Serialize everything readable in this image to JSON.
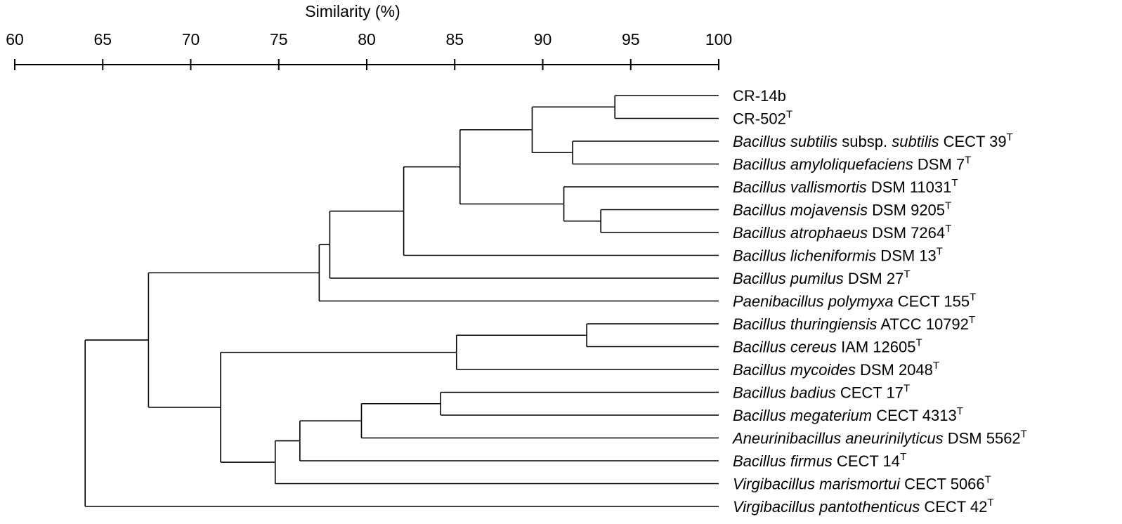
{
  "axis": {
    "title": "Similarity (%)",
    "min": 60,
    "max": 100,
    "ticks": [
      60,
      65,
      70,
      75,
      80,
      85,
      90,
      95,
      100
    ]
  },
  "leaves": [
    {
      "id": "cr14b",
      "parts": [
        {
          "t": "CR-14b",
          "i": false
        }
      ],
      "sup": ""
    },
    {
      "id": "cr502",
      "parts": [
        {
          "t": "CR-502",
          "i": false
        }
      ],
      "sup": "T"
    },
    {
      "id": "bsub",
      "parts": [
        {
          "t": "Bacillus subtilis",
          "i": true
        },
        {
          "t": " subsp. ",
          "i": false
        },
        {
          "t": "subtilis",
          "i": true
        },
        {
          "t": " CECT 39",
          "i": false
        }
      ],
      "sup": "T"
    },
    {
      "id": "bamy",
      "parts": [
        {
          "t": "Bacillus amyloliquefaciens",
          "i": true
        },
        {
          "t": " DSM 7",
          "i": false
        }
      ],
      "sup": "T"
    },
    {
      "id": "bval",
      "parts": [
        {
          "t": "Bacillus vallismortis",
          "i": true
        },
        {
          "t": " DSM 11031",
          "i": false
        }
      ],
      "sup": "T"
    },
    {
      "id": "bmoj",
      "parts": [
        {
          "t": "Bacillus mojavensis",
          "i": true
        },
        {
          "t": " DSM 9205",
          "i": false
        }
      ],
      "sup": "T"
    },
    {
      "id": "batr",
      "parts": [
        {
          "t": "Bacillus atrophaeus",
          "i": true
        },
        {
          "t": " DSM 7264",
          "i": false
        }
      ],
      "sup": "T"
    },
    {
      "id": "blic",
      "parts": [
        {
          "t": "Bacillus licheniformis",
          "i": true
        },
        {
          "t": " DSM 13",
          "i": false
        }
      ],
      "sup": "T"
    },
    {
      "id": "bpum",
      "parts": [
        {
          "t": "Bacillus pumilus",
          "i": true
        },
        {
          "t": " DSM 27",
          "i": false
        }
      ],
      "sup": "T"
    },
    {
      "id": "ppol",
      "parts": [
        {
          "t": "Paenibacillus polymyxa",
          "i": true
        },
        {
          "t": " CECT 155",
          "i": false
        }
      ],
      "sup": "T"
    },
    {
      "id": "bthu",
      "parts": [
        {
          "t": "Bacillus thuringiensis",
          "i": true
        },
        {
          "t": " ATCC 10792",
          "i": false
        }
      ],
      "sup": "T"
    },
    {
      "id": "bcer",
      "parts": [
        {
          "t": "Bacillus cereus",
          "i": true
        },
        {
          "t": " IAM 12605",
          "i": false
        }
      ],
      "sup": "T"
    },
    {
      "id": "bmyc",
      "parts": [
        {
          "t": "Bacillus mycoides",
          "i": true
        },
        {
          "t": " DSM 2048",
          "i": false
        }
      ],
      "sup": "T"
    },
    {
      "id": "bbad",
      "parts": [
        {
          "t": "Bacillus badius",
          "i": true
        },
        {
          "t": " CECT 17",
          "i": false
        }
      ],
      "sup": "T"
    },
    {
      "id": "bmeg",
      "parts": [
        {
          "t": "Bacillus megaterium",
          "i": true
        },
        {
          "t": " CECT 4313",
          "i": false
        }
      ],
      "sup": "T"
    },
    {
      "id": "aane",
      "parts": [
        {
          "t": "Aneurinibacillus aneurinilyticus",
          "i": true
        },
        {
          "t": " DSM 5562",
          "i": false
        }
      ],
      "sup": "T"
    },
    {
      "id": "bfir",
      "parts": [
        {
          "t": "Bacillus firmus",
          "i": true
        },
        {
          "t": " CECT 14",
          "i": false
        }
      ],
      "sup": "T"
    },
    {
      "id": "vmar",
      "parts": [
        {
          "t": "Virgibacillus marismortui",
          "i": true
        },
        {
          "t": " CECT 5066",
          "i": false
        }
      ],
      "sup": "T"
    },
    {
      "id": "vpan",
      "parts": [
        {
          "t": "Virgibacillus pantothenticus",
          "i": true
        },
        {
          "t": " CECT 42",
          "i": false
        }
      ],
      "sup": "T"
    }
  ],
  "tree": {
    "sim": 64.0,
    "children": [
      {
        "sim": 67.6,
        "children": [
          {
            "sim": 77.3,
            "children": [
              {
                "sim": 77.9,
                "children": [
                  {
                    "sim": 82.1,
                    "children": [
                      {
                        "sim": 85.3,
                        "children": [
                          {
                            "sim": 89.4,
                            "children": [
                              {
                                "sim": 94.1,
                                "children": [
                                  {
                                    "leaf": 0
                                  },
                                  {
                                    "leaf": 1
                                  }
                                ]
                              },
                              {
                                "sim": 91.7,
                                "children": [
                                  {
                                    "leaf": 2
                                  },
                                  {
                                    "leaf": 3
                                  }
                                ]
                              }
                            ]
                          },
                          {
                            "sim": 91.2,
                            "children": [
                              {
                                "leaf": 4
                              },
                              {
                                "sim": 93.3,
                                "children": [
                                  {
                                    "leaf": 5
                                  },
                                  {
                                    "leaf": 6
                                  }
                                ]
                              }
                            ]
                          }
                        ]
                      },
                      {
                        "leaf": 7
                      }
                    ]
                  },
                  {
                    "leaf": 8
                  }
                ]
              },
              {
                "leaf": 9
              }
            ]
          },
          {
            "sim": 71.7,
            "children": [
              {
                "sim": 85.1,
                "children": [
                  {
                    "sim": 92.5,
                    "children": [
                      {
                        "leaf": 10
                      },
                      {
                        "leaf": 11
                      }
                    ]
                  },
                  {
                    "leaf": 12
                  }
                ]
              },
              {
                "sim": 74.8,
                "children": [
                  {
                    "sim": 76.2,
                    "children": [
                      {
                        "sim": 79.7,
                        "children": [
                          {
                            "sim": 84.2,
                            "children": [
                              {
                                "leaf": 13
                              },
                              {
                                "leaf": 14
                              }
                            ]
                          },
                          {
                            "leaf": 15
                          }
                        ]
                      },
                      {
                        "leaf": 16
                      }
                    ]
                  },
                  {
                    "leaf": 17
                  }
                ]
              }
            ]
          }
        ]
      },
      {
        "leaf": 18
      }
    ]
  }
}
